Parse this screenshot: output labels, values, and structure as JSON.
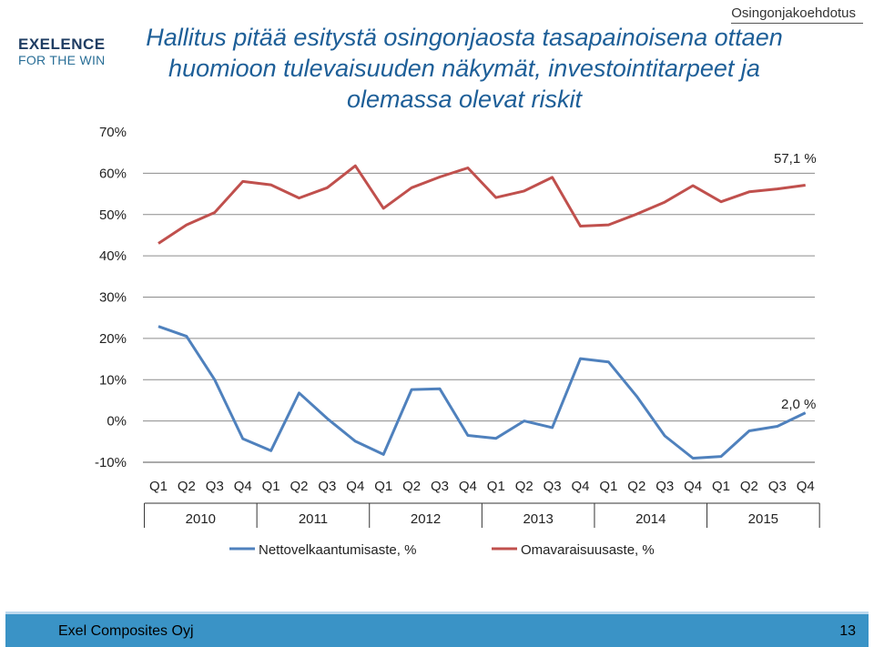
{
  "header": {
    "section_label": "Osingonjakoehdotus",
    "logo_top": "EXELENCE",
    "logo_bottom": "FOR THE WIN",
    "title": "Hallitus pitää esitystä osingonjaosta tasapainoisena ottaen huomioon tulevaisuuden näkymät, investointitarpeet ja olemassa olevat riskit"
  },
  "footer": {
    "company": "Exel Composites Oyj",
    "page_number": "13"
  },
  "chart_data": {
    "type": "line",
    "title": "Hallitus pitää esitystä osingonjaosta tasapainoisena ottaen huomioon tulevaisuuden näkymät, investointitarpeet ja olemassa olevat riskit",
    "xlabel": "",
    "ylabel": "",
    "ylim": [
      -10,
      70
    ],
    "yticks": [
      -10,
      0,
      10,
      20,
      30,
      40,
      50,
      60,
      70
    ],
    "ytick_labels": [
      "-10%",
      "0%",
      "10%",
      "20%",
      "30%",
      "40%",
      "50%",
      "60%",
      "70%"
    ],
    "grid": "horizontal",
    "legend": "bottom",
    "quarters": [
      "Q1",
      "Q2",
      "Q3",
      "Q4",
      "Q1",
      "Q2",
      "Q3",
      "Q4",
      "Q1",
      "Q2",
      "Q3",
      "Q4",
      "Q1",
      "Q2",
      "Q3",
      "Q4",
      "Q1",
      "Q2",
      "Q3",
      "Q4",
      "Q1",
      "Q2",
      "Q3",
      "Q4"
    ],
    "years": [
      "2010",
      "2011",
      "2012",
      "2013",
      "2014",
      "2015"
    ],
    "series": [
      {
        "name": "Nettovelkaantumisaste, %",
        "color": "#4f81bd",
        "values": [
          22.9,
          20.5,
          10.0,
          -4.3,
          -7.2,
          6.8,
          0.6,
          -4.9,
          -8.1,
          7.6,
          7.8,
          -3.5,
          -4.2,
          0.0,
          -1.6,
          15.1,
          14.3,
          6.0,
          -3.6,
          -9.0,
          -8.6,
          -2.4,
          -1.3,
          2.0
        ],
        "end_label": "2,0 %"
      },
      {
        "name": "Omavaraisuusaste, %",
        "color": "#c0504d",
        "values": [
          43.0,
          47.5,
          50.5,
          58.0,
          57.2,
          54.0,
          56.5,
          61.8,
          51.5,
          56.5,
          59.1,
          61.3,
          54.1,
          55.7,
          59.0,
          47.2,
          47.5,
          50.1,
          53.0,
          57.0,
          53.1,
          55.5,
          56.2,
          57.1
        ],
        "end_label": "57,1 %"
      }
    ]
  }
}
